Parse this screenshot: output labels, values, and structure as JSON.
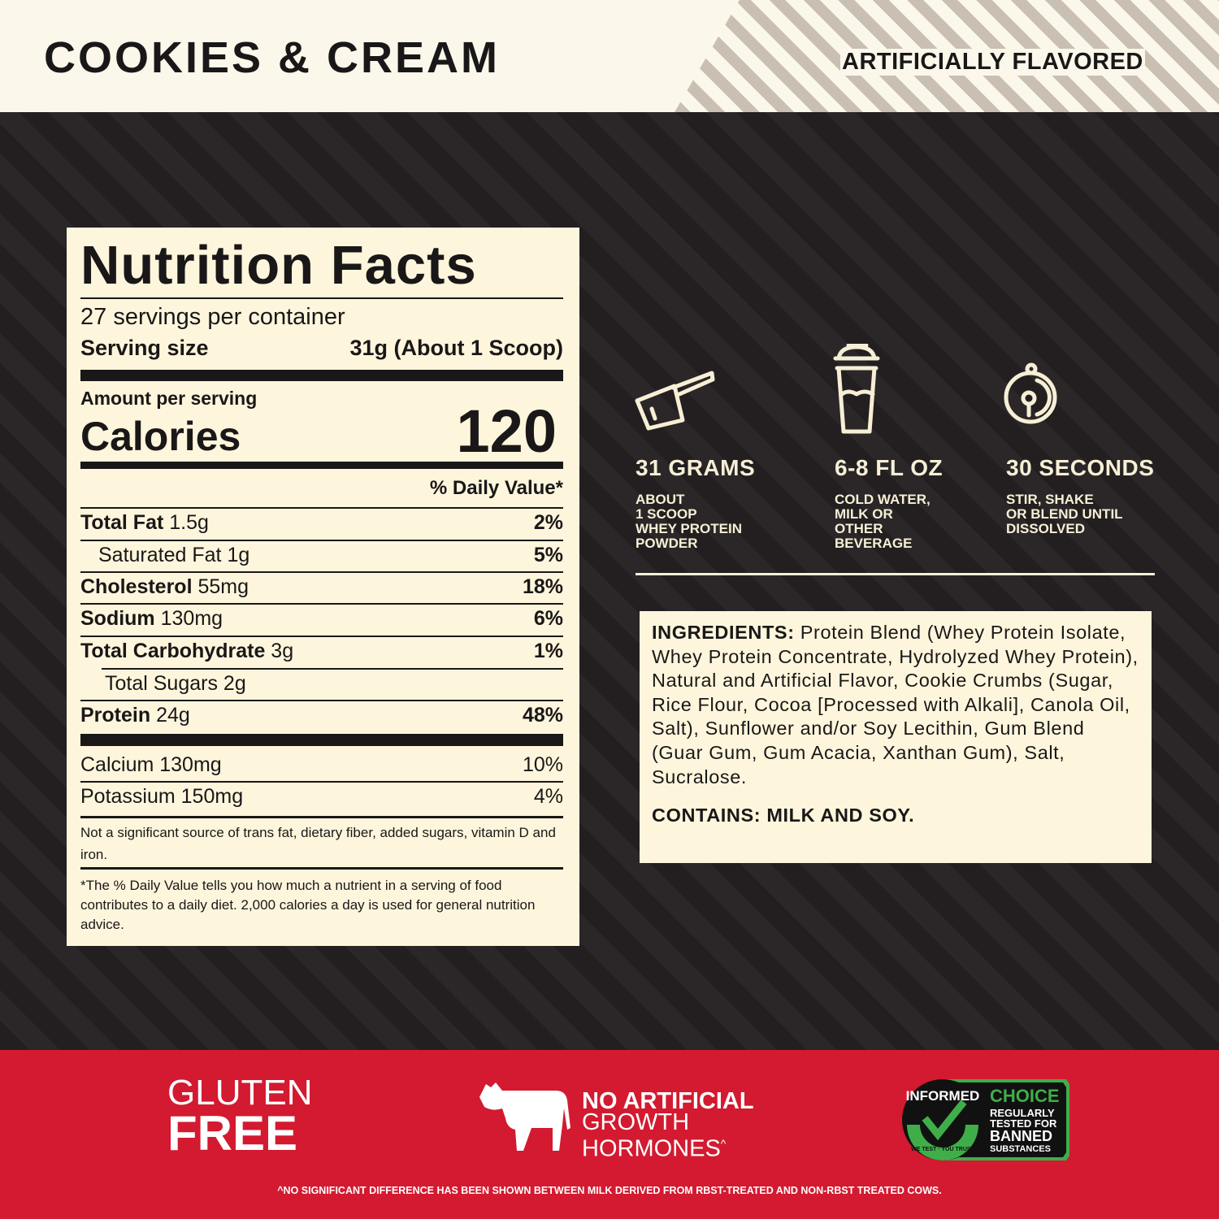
{
  "header": {
    "flavor": "COOKIES & CREAM",
    "artificially_flavored": "ARTIFICIALLY FLAVORED"
  },
  "nutrition": {
    "title": "Nutrition Facts",
    "servings": "27 servings per container",
    "serving_size_label": "Serving size",
    "serving_size_value": "31g (About 1 Scoop)",
    "amount_per_serving": "Amount per serving",
    "calories_label": "Calories",
    "calories_value": "120",
    "dv_header": "% Daily Value*",
    "rows": [
      {
        "label": "Total Fat",
        "amount": "1.5g",
        "dv": "2%"
      },
      {
        "label": "Saturated Fat",
        "amount": "1g",
        "dv": "5%"
      },
      {
        "label": "Cholesterol",
        "amount": "55mg",
        "dv": "18%"
      },
      {
        "label": "Sodium",
        "amount": "130mg",
        "dv": "6%"
      },
      {
        "label": "Total Carbohydrate",
        "amount": "3g",
        "dv": "1%"
      },
      {
        "label": "Total Sugars",
        "amount": "2g",
        "dv": ""
      },
      {
        "label": "Protein",
        "amount": "24g",
        "dv": "48%"
      }
    ],
    "minerals": [
      {
        "label": "Calcium 130mg",
        "dv": "10%"
      },
      {
        "label": "Potassium 150mg",
        "dv": "4%"
      }
    ],
    "note": "Not a significant source of trans fat, dietary fiber, added sugars, vitamin D and iron.",
    "footnote": "*The % Daily Value tells you how much a nutrient in a serving of food contributes to a daily diet. 2,000 calories a day is used for general nutrition advice."
  },
  "directions": [
    {
      "icon": "scoop-icon",
      "title": "31 GRAMS",
      "text": "ABOUT\n1 SCOOP\nWHEY PROTEIN\nPOWDER"
    },
    {
      "icon": "shaker-icon",
      "title": "6-8 FL OZ",
      "text": "COLD WATER,\nMILK OR\nOTHER\nBEVERAGE"
    },
    {
      "icon": "stopwatch-icon",
      "title": "30 SECONDS",
      "text": "STIR, SHAKE\nOR BLEND UNTIL\nDISSOLVED"
    }
  ],
  "ingredients": {
    "label": "INGREDIENTS:",
    "text": "Protein Blend (Whey Protein Isolate, Whey Protein Concentrate, Hydrolyzed Whey Protein), Natural and Artificial Flavor, Cookie Crumbs (Sugar, Rice Flour, Cocoa [Processed with Alkali], Canola Oil, Salt), Sunflower and/or Soy Lecithin, Gum Blend (Guar Gum, Gum Acacia, Xanthan Gum), Salt, Sucralose.",
    "contains": "CONTAINS: MILK AND SOY."
  },
  "badges": {
    "gluten_line1": "GLUTEN",
    "gluten_line2": "FREE",
    "hormones_line1": "NO ARTIFICIAL",
    "hormones_line2": "GROWTH",
    "hormones_line3": "HORMONES",
    "hormones_mark": "^",
    "informed_arc": "INFORMED",
    "informed_bottom": "WE TEST · YOU TRUST",
    "choice": "CHOICE",
    "choice_l1": "REGULARLY",
    "choice_l2": "TESTED FOR",
    "choice_l3": "BANNED",
    "choice_l4": "SUBSTANCES"
  },
  "disclaimer": "^NO SIGNIFICANT DIFFERENCE HAS BEEN SHOWN BETWEEN MILK DERIVED FROM RBST-TREATED AND NON-RBST TREATED COWS.",
  "colors": {
    "cream": "#fdf6dc",
    "dark": "#231f20",
    "red": "#d31a30",
    "green": "#3fae49"
  }
}
